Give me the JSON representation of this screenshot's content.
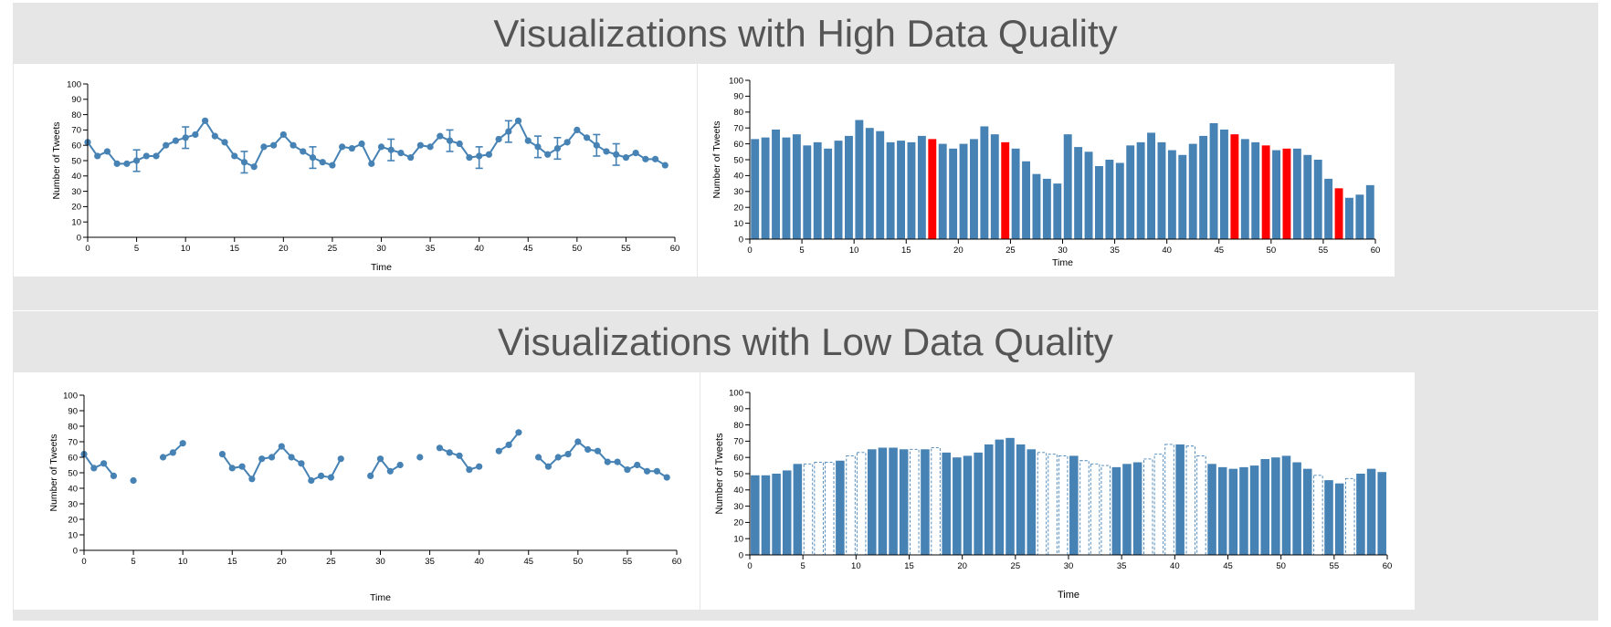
{
  "sections": {
    "high_title": "Visualizations with High Data Quality",
    "low_title": "Visualizations with Low Data Quality"
  },
  "colors": {
    "primary": "#4682b4",
    "highlight": "#ff0000",
    "axis": "#000000",
    "banner_bg": "#e6e6e6",
    "banner_text": "#555555"
  },
  "chart_data": [
    {
      "id": "high-line",
      "type": "line",
      "xlabel": "Time",
      "ylabel": "Number of Tweets",
      "xlim": [
        0,
        60
      ],
      "ylim": [
        0,
        100
      ],
      "xticks": [
        0,
        5,
        10,
        15,
        20,
        25,
        30,
        35,
        40,
        45,
        50,
        55,
        60
      ],
      "yticks": [
        0,
        10,
        20,
        30,
        40,
        50,
        60,
        70,
        80,
        90,
        100
      ],
      "grid": false,
      "values": [
        62,
        53,
        56,
        48,
        48,
        50,
        53,
        53,
        60,
        63,
        65,
        67,
        76,
        66,
        62,
        53,
        49,
        46,
        59,
        60,
        67,
        60,
        56,
        52,
        49,
        47,
        59,
        58,
        61,
        48,
        59,
        57,
        55,
        52,
        60,
        59,
        66,
        63,
        61,
        52,
        53,
        54,
        64,
        69,
        76,
        63,
        59,
        54,
        58,
        62,
        70,
        65,
        60,
        56,
        54,
        52,
        55,
        51,
        51,
        47
      ],
      "error_bars": [
        {
          "x": 5,
          "low": 43,
          "high": 57
        },
        {
          "x": 10,
          "low": 58,
          "high": 72
        },
        {
          "x": 16,
          "low": 42,
          "high": 56
        },
        {
          "x": 23,
          "low": 45,
          "high": 59
        },
        {
          "x": 31,
          "low": 50,
          "high": 64
        },
        {
          "x": 37,
          "low": 56,
          "high": 70
        },
        {
          "x": 40,
          "low": 45,
          "high": 59
        },
        {
          "x": 43,
          "low": 62,
          "high": 76
        },
        {
          "x": 46,
          "low": 52,
          "high": 66
        },
        {
          "x": 48,
          "low": 51,
          "high": 65
        },
        {
          "x": 52,
          "low": 53,
          "high": 67
        },
        {
          "x": 54,
          "low": 47,
          "high": 61
        }
      ]
    },
    {
      "id": "high-bar",
      "type": "bar",
      "xlabel": "Time",
      "ylabel": "Number of Tweets",
      "xlim": [
        0,
        60
      ],
      "ylim": [
        0,
        100
      ],
      "xticks": [
        0,
        5,
        10,
        15,
        20,
        25,
        30,
        35,
        40,
        45,
        50,
        55,
        60
      ],
      "yticks": [
        0,
        10,
        20,
        30,
        40,
        50,
        60,
        70,
        80,
        90,
        100
      ],
      "grid": false,
      "values": [
        63,
        64,
        69,
        64,
        66,
        59,
        61,
        57,
        62,
        65,
        75,
        70,
        68,
        61,
        62,
        61,
        65,
        63,
        60,
        57,
        60,
        63,
        71,
        66,
        61,
        57,
        49,
        41,
        38,
        35,
        66,
        58,
        55,
        46,
        50,
        48,
        59,
        61,
        67,
        61,
        56,
        53,
        60,
        65,
        73,
        69,
        66,
        63,
        61,
        59,
        56,
        57,
        57,
        53,
        50,
        38,
        32,
        26,
        28,
        34
      ],
      "highlight_indices": [
        17,
        24,
        46,
        49,
        51,
        56
      ]
    },
    {
      "id": "low-line",
      "type": "line",
      "xlabel": "Time",
      "ylabel": "Number of Tweets",
      "xlim": [
        0,
        60
      ],
      "ylim": [
        0,
        100
      ],
      "xticks": [
        0,
        5,
        10,
        15,
        20,
        25,
        30,
        35,
        40,
        45,
        50,
        55,
        60
      ],
      "yticks": [
        0,
        10,
        20,
        30,
        40,
        50,
        60,
        70,
        80,
        90,
        100
      ],
      "grid": false,
      "values": [
        62,
        53,
        56,
        48,
        null,
        45,
        null,
        null,
        60,
        63,
        69,
        null,
        null,
        null,
        62,
        53,
        54,
        46,
        59,
        60,
        67,
        60,
        56,
        45,
        48,
        47,
        59,
        null,
        null,
        48,
        59,
        51,
        55,
        null,
        60,
        null,
        66,
        63,
        61,
        52,
        54,
        null,
        64,
        68,
        76,
        null,
        60,
        54,
        60,
        62,
        70,
        65,
        64,
        57,
        57,
        52,
        55,
        51,
        51,
        47
      ]
    },
    {
      "id": "low-bar",
      "type": "bar",
      "xlabel": "Time",
      "ylabel": "Number of Tweets",
      "xlim": [
        0,
        60
      ],
      "ylim": [
        0,
        100
      ],
      "xticks": [
        0,
        5,
        10,
        15,
        20,
        25,
        30,
        35,
        40,
        45,
        50,
        55,
        60
      ],
      "yticks": [
        0,
        10,
        20,
        30,
        40,
        50,
        60,
        70,
        80,
        90,
        100
      ],
      "grid": false,
      "values": [
        49,
        49,
        50,
        52,
        56,
        56,
        57,
        57,
        58,
        61,
        63,
        65,
        66,
        66,
        65,
        65,
        65,
        66,
        63,
        60,
        61,
        63,
        68,
        71,
        72,
        68,
        65,
        63,
        62,
        61,
        61,
        58,
        56,
        55,
        54,
        56,
        57,
        59,
        62,
        68,
        68,
        67,
        61,
        56,
        54,
        53,
        54,
        55,
        59,
        60,
        61,
        57,
        53,
        49,
        46,
        44,
        47,
        50,
        53,
        51
      ],
      "dashed_indices": [
        5,
        6,
        7,
        9,
        10,
        15,
        17,
        27,
        28,
        29,
        31,
        32,
        33,
        37,
        38,
        39,
        41,
        42,
        53,
        56
      ]
    }
  ]
}
